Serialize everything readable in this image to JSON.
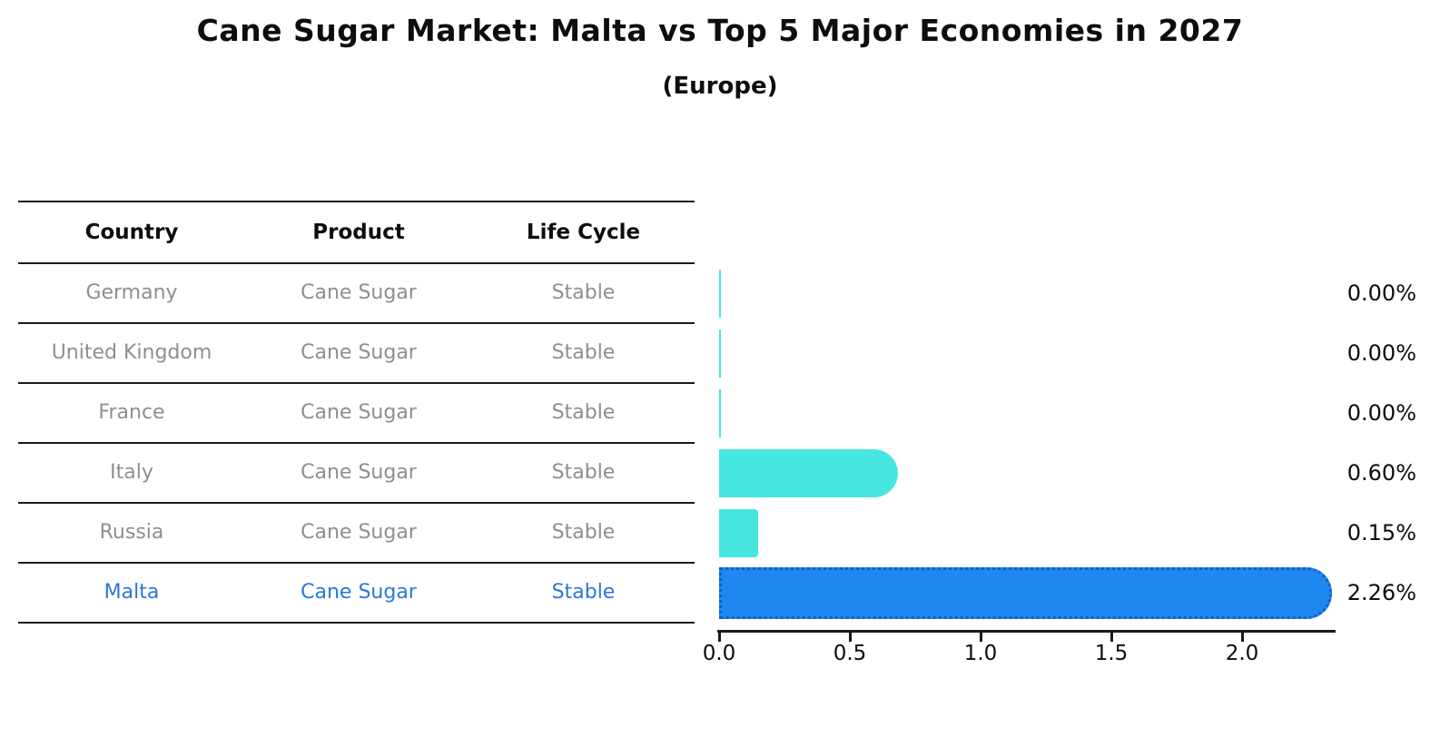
{
  "title": "Cane Sugar Market: Malta vs Top 5 Major Economies in 2027",
  "subtitle": "(Europe)",
  "table": {
    "headers": [
      "Country",
      "Product",
      "Life Cycle"
    ],
    "rows": [
      {
        "country": "Germany",
        "product": "Cane Sugar",
        "life_cycle": "Stable",
        "value": 0.0,
        "value_label": "0.00%",
        "highlight": false
      },
      {
        "country": "United Kingdom",
        "product": "Cane Sugar",
        "life_cycle": "Stable",
        "value": 0.0,
        "value_label": "0.00%",
        "highlight": false
      },
      {
        "country": "France",
        "product": "Cane Sugar",
        "life_cycle": "Stable",
        "value": 0.0,
        "value_label": "0.00%",
        "highlight": false
      },
      {
        "country": "Italy",
        "product": "Cane Sugar",
        "life_cycle": "Stable",
        "value": 0.6,
        "value_label": "0.60%",
        "highlight": false
      },
      {
        "country": "Russia",
        "product": "Cane Sugar",
        "life_cycle": "Stable",
        "value": 0.15,
        "value_label": "0.15%",
        "highlight": false
      },
      {
        "country": "Malta",
        "product": "Cane Sugar",
        "life_cycle": "Stable",
        "value": 2.26,
        "value_label": "2.26%",
        "highlight": true
      }
    ]
  },
  "chart_data": {
    "type": "bar",
    "orientation": "horizontal",
    "title": "Cane Sugar Market: Malta vs Top 5 Major Economies in 2027",
    "subtitle": "(Europe)",
    "categories": [
      "Germany",
      "United Kingdom",
      "France",
      "Italy",
      "Russia",
      "Malta"
    ],
    "values": [
      0.0,
      0.0,
      0.0,
      0.6,
      0.15,
      2.26
    ],
    "value_labels": [
      "0.00%",
      "0.00%",
      "0.00%",
      "0.60%",
      "0.15%",
      "2.26%"
    ],
    "xlabel": "",
    "ylabel": "",
    "x_ticks": [
      0.0,
      0.5,
      1.0,
      1.5,
      2.0
    ],
    "x_tick_labels": [
      "0.0",
      "0.5",
      "1.0",
      "1.5",
      "2.0"
    ],
    "xlim": [
      0,
      2.36
    ],
    "grid": false,
    "legend": false,
    "colors": {
      "bar_default": "#47e6e0",
      "bar_highlight": "#1e87f0",
      "bar_highlight_border": "#0c5fd0",
      "row_text": "#8c8f94",
      "highlight_text": "#2878dc",
      "axis": "#1a1a1a",
      "label_text": "#0d0d0d",
      "background": "#ffffff"
    }
  }
}
